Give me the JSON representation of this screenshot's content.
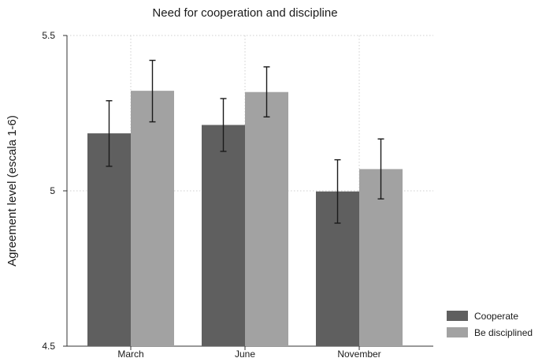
{
  "chart_data": {
    "type": "bar",
    "title": "Need for cooperation and discipline",
    "xlabel": "",
    "ylabel": "Agreement level (escala 1-6)",
    "categories": [
      "March",
      "June",
      "November"
    ],
    "ylim": [
      4.5,
      5.5
    ],
    "yticks": [
      4.5,
      5,
      5.5
    ],
    "ytick_labels": [
      "4.5",
      "5",
      "5.5"
    ],
    "grid": true,
    "legend_position": "bottom-right",
    "series": [
      {
        "name": "Cooperate",
        "color": "#5f5f5f",
        "values": [
          5.185,
          5.212,
          4.998
        ],
        "ci_low": [
          5.079,
          5.127,
          4.896
        ],
        "ci_high": [
          5.29,
          5.297,
          5.1
        ]
      },
      {
        "name": "Be disciplined",
        "color": "#a2a2a2",
        "values": [
          5.322,
          5.318,
          5.07
        ],
        "ci_low": [
          5.222,
          5.238,
          4.974
        ],
        "ci_high": [
          5.42,
          5.399,
          5.167
        ]
      }
    ]
  }
}
